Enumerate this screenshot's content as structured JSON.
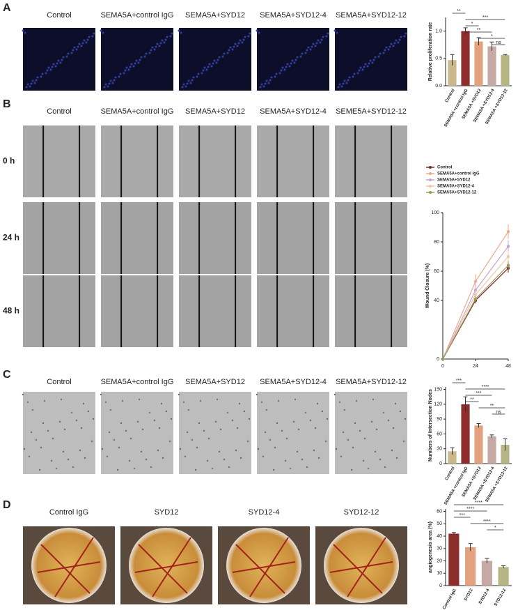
{
  "panels": {
    "A": {
      "label": "A",
      "columns": [
        "Control",
        "SEMA5A+control IgG",
        "SEMA5A+SYD12",
        "SEMA5A+SYD12-4",
        "SEMA5A+SYD12-12"
      ]
    },
    "B": {
      "label": "B",
      "columns": [
        "Control",
        "SEMA5A+control IgG",
        "SEMA5A+SYD12",
        "SEMA5A+SYD12-4",
        "SEME5A+SYD12-12"
      ],
      "rows": [
        "0 h",
        "24 h",
        "48 h"
      ]
    },
    "C": {
      "label": "C",
      "columns": [
        "Control",
        "SEMA5A+control IgG",
        "SEMA5A+SYD12",
        "SEMA5A+SYD12-4",
        "SEMA5A+SYD12-12"
      ]
    },
    "D": {
      "label": "D",
      "columns": [
        "Control IgG",
        "SYD12",
        "SYD12-4",
        "SYD12-12"
      ]
    }
  },
  "chart_data": [
    {
      "type": "bar",
      "y_label": "Relative proliferation rate",
      "categories": [
        "Control",
        "SEMA5A +control IgG",
        "SEMA5A +SYD12",
        "SEMA5A +SYD12-4",
        "SEMA5A +SYD12-12"
      ],
      "values": [
        0.47,
        1.0,
        0.81,
        0.72,
        0.56
      ],
      "errors": [
        0.1,
        0.06,
        0.07,
        0.08,
        0.01
      ],
      "colors": [
        "#c9b98a",
        "#8e2e2c",
        "#e2a27f",
        "#c6a8a4",
        "#b6b685"
      ],
      "ylim": [
        0,
        1.25
      ],
      "yticks": [
        {
          "value": 0,
          "label": "0.0"
        },
        0.5,
        {
          "value": 1,
          "label": "1.0"
        }
      ],
      "annotations": [
        {
          "text": "**",
          "from": 0,
          "to": 1
        },
        {
          "text": "***",
          "from": 1,
          "to": 4
        },
        {
          "text": "*",
          "from": 1,
          "to": 2
        },
        {
          "text": "**",
          "from": 1,
          "to": 3
        },
        {
          "text": "*",
          "from": 2,
          "to": 4
        },
        {
          "text": "ns",
          "from": 3,
          "to": 4
        }
      ]
    },
    {
      "type": "line",
      "y_label": "Wound Closure (%)",
      "x": [
        0,
        24,
        48
      ],
      "xlim": [
        0,
        48
      ],
      "xticks": [
        0,
        24,
        48
      ],
      "ylim": [
        0,
        100
      ],
      "yticks": [
        0,
        40,
        60,
        80,
        100
      ],
      "series": [
        {
          "name": "Control",
          "color": "#7a2a28",
          "values": [
            0,
            40,
            62
          ],
          "errors": [
            0,
            2,
            3
          ]
        },
        {
          "name": "SEMA5A+control IgG",
          "color": "#e9a98c",
          "values": [
            0,
            53,
            87
          ],
          "errors": [
            0,
            5,
            5
          ]
        },
        {
          "name": "SEMA5A+SYD12",
          "color": "#c8a3c8",
          "values": [
            0,
            47,
            77
          ],
          "errors": [
            0,
            4,
            4
          ]
        },
        {
          "name": "SEMA5A+SYD12-4",
          "color": "#f0c8a8",
          "values": [
            0,
            44,
            70
          ],
          "errors": [
            0,
            3,
            4
          ]
        },
        {
          "name": "SEMA5A+SYD12-12",
          "color": "#9a9a5a",
          "values": [
            0,
            41,
            64
          ],
          "errors": [
            0,
            2,
            3
          ]
        }
      ]
    },
    {
      "type": "bar",
      "y_label": "Numbers of Intersection Nodes",
      "categories": [
        "Control",
        "SEMA5A +control IgG",
        "SEMA5A +SYD12",
        "SEMA5A +SYD12-4",
        "SEMA5A +SYD12-12"
      ],
      "values": [
        25,
        120,
        77,
        55,
        38
      ],
      "errors": [
        7,
        15,
        4,
        3,
        12
      ],
      "colors": [
        "#c9b98a",
        "#8e2e2c",
        "#e2a27f",
        "#c6a8a4",
        "#b6b685"
      ],
      "ylim": [
        0,
        155
      ],
      "yticks": [
        0,
        30,
        60,
        90,
        120,
        150
      ],
      "annotations": [
        {
          "text": "***",
          "from": 0,
          "to": 1
        },
        {
          "text": "****",
          "from": 1,
          "to": 4
        },
        {
          "text": "***",
          "from": 1,
          "to": 3
        },
        {
          "text": "**",
          "from": 1,
          "to": 2
        },
        {
          "text": "**",
          "from": 2,
          "to": 4
        },
        {
          "text": "ns",
          "from": 3,
          "to": 4
        }
      ]
    },
    {
      "type": "bar",
      "y_label": "angiogenesis area (%)",
      "categories": [
        "Control IgG",
        "SYD12",
        "SYD12-4",
        "SYD12-12"
      ],
      "values": [
        42,
        31,
        20,
        15
      ],
      "errors": [
        1,
        3,
        2,
        1
      ],
      "colors": [
        "#8e2e2c",
        "#e2a27f",
        "#c6a8a4",
        "#b6b685"
      ],
      "ylim": [
        0,
        62
      ],
      "yticks": [
        0,
        10,
        20,
        30,
        40,
        50,
        60
      ],
      "annotations": [
        {
          "text": "****",
          "from": 0,
          "to": 3
        },
        {
          "text": "****",
          "from": 0,
          "to": 2
        },
        {
          "text": "***",
          "from": 0,
          "to": 1
        },
        {
          "text": "****",
          "from": 1,
          "to": 3
        },
        {
          "text": "*",
          "from": 2,
          "to": 3
        }
      ]
    }
  ]
}
